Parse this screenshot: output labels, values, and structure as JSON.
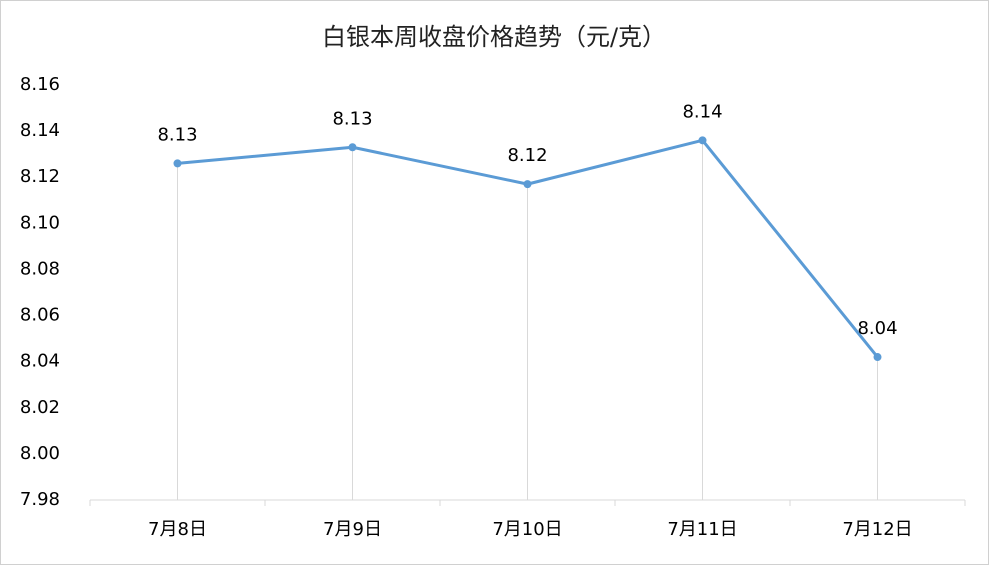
{
  "chart_data": {
    "type": "line",
    "title": "白银本周收盘价格趋势（元/克）",
    "categories": [
      "7月8日",
      "7月9日",
      "7月10日",
      "7月11日",
      "7月12日"
    ],
    "series": [
      {
        "name": "收盘价格",
        "color": "#5b9bd5",
        "values": [
          8.126,
          8.133,
          8.117,
          8.136,
          8.042
        ],
        "value_labels": [
          "8.13",
          "8.13",
          "8.12",
          "8.14",
          "8.04"
        ]
      }
    ],
    "ylim": [
      7.98,
      8.16
    ],
    "yticks": [
      7.98,
      {
        "value": 8,
        "label": "8.00"
      },
      8.02,
      8.04,
      8.06,
      8.08,
      {
        "value": 8.1,
        "label": "8.10"
      },
      8.12,
      8.14,
      8.16
    ],
    "drop_lines": true
  }
}
